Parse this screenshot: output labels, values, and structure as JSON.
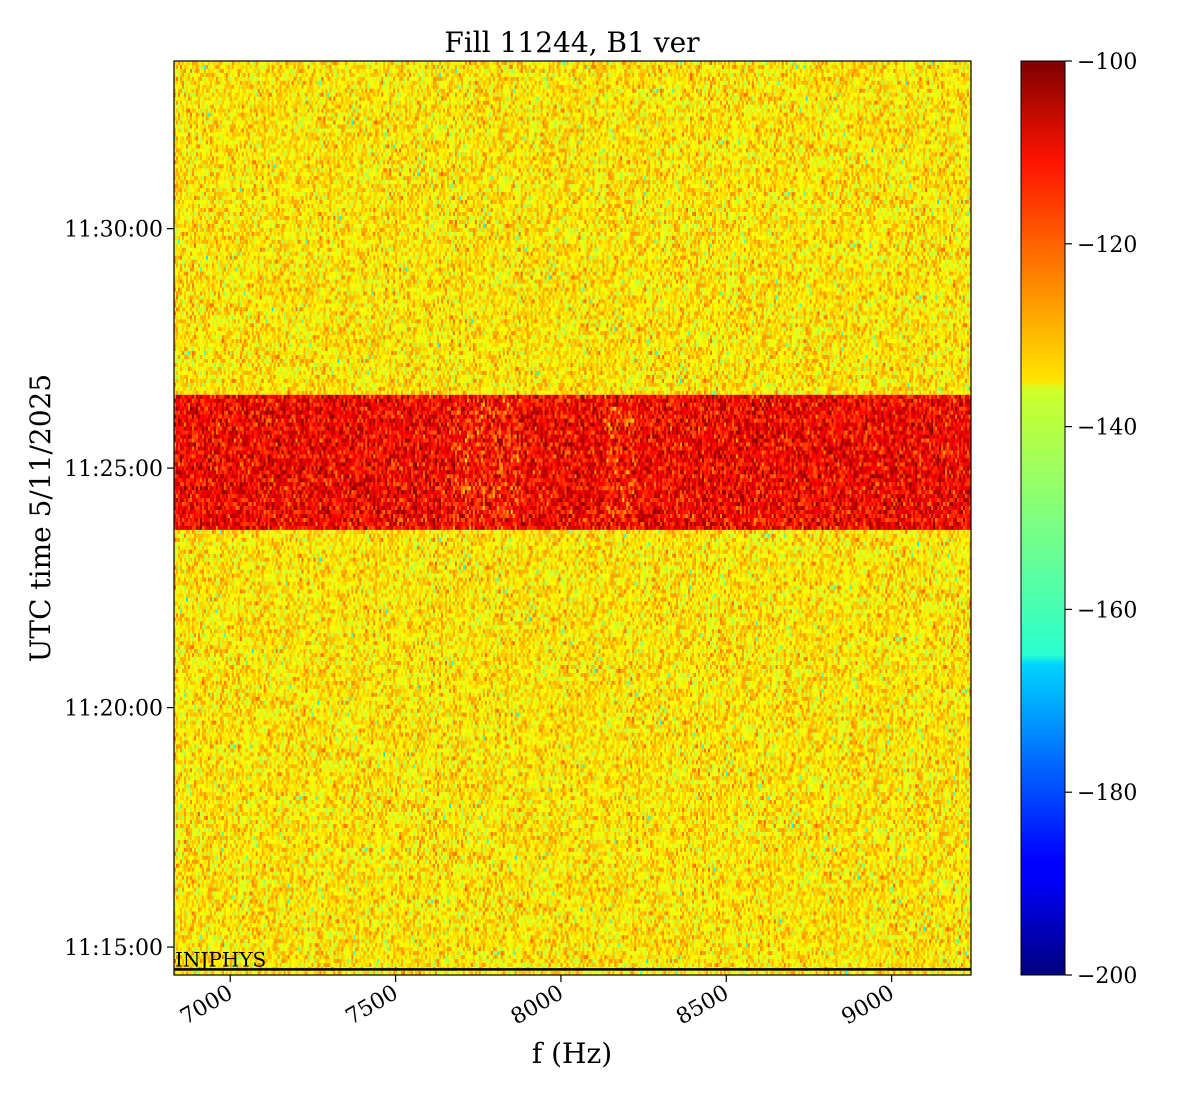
{
  "chart_data": {
    "type": "heatmap",
    "title": "Fill 11244, B1 ver",
    "xlabel": "f (Hz)",
    "ylabel": "UTC time 5/11/2025",
    "x_range": [
      6830,
      9240
    ],
    "x_ticks": [
      7000,
      7500,
      8000,
      8500,
      9000
    ],
    "x_tick_labels": [
      "7000",
      "7500",
      "8000",
      "8500",
      "9000"
    ],
    "y_range": [
      "11:14:25",
      "11:33:30"
    ],
    "y_ticks": [
      "11:15:00",
      "11:20:00",
      "11:25:00",
      "11:30:00"
    ],
    "y_tick_labels": [
      "11:15:00",
      "11:20:00",
      "11:25:00",
      "11:30:00"
    ],
    "colormap": "jet",
    "colorbar": {
      "range": [
        -200,
        -100
      ],
      "ticks": [
        -100,
        -120,
        -140,
        -160,
        -180,
        -200
      ],
      "tick_labels": [
        "−100",
        "−120",
        "−140",
        "−160",
        "−180",
        "−200"
      ]
    },
    "background_level": -135,
    "bright_band": {
      "start": "11:23:45",
      "end": "11:26:32",
      "level": -112,
      "hot_lines_hz": [
        7720,
        7830,
        8180
      ]
    },
    "annotations": [
      {
        "text": "INJPHYS",
        "time": "11:14:32"
      }
    ]
  }
}
